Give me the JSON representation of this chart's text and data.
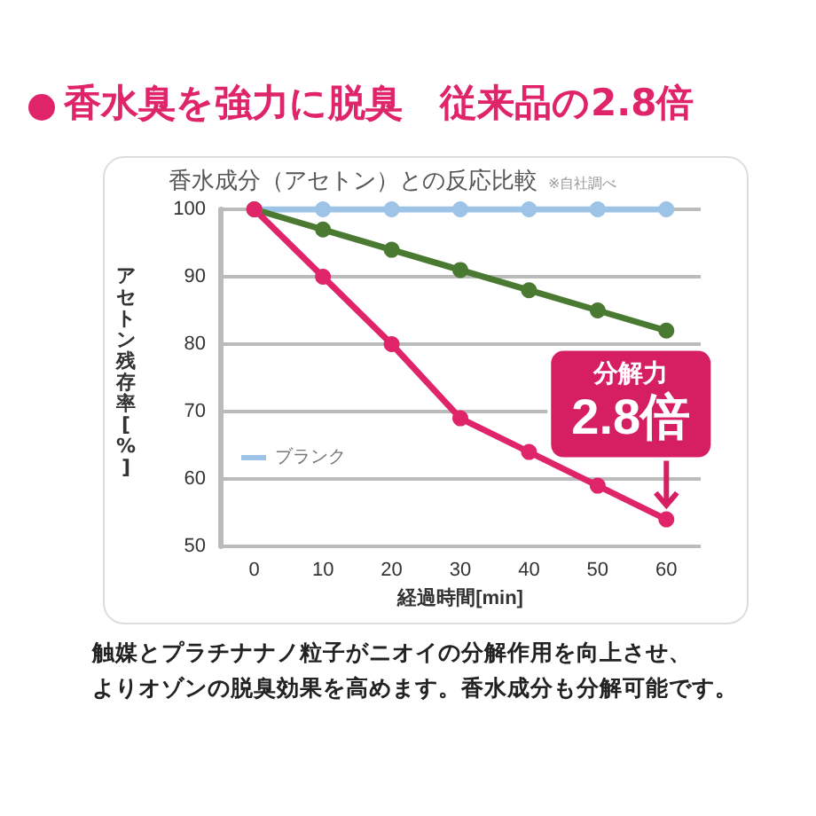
{
  "chart_data": {
    "type": "line",
    "title": "香水臭を強力に脱臭　従来品の2.8倍",
    "subtitle": "香水成分（アセトン）との反応比較",
    "xlabel": "経過時間[min]",
    "ylabel": "アセトン残存率[%]",
    "annotations": [
      "※自社調べ",
      "分解力",
      "2.8倍",
      "触媒とプラチナナノ粒子がニオイの分解作用を向上させ、",
      "よりオゾンの脱臭効果を高めます。香水成分も分解可能です。"
    ],
    "categories": [
      "0",
      "10",
      "20",
      "30",
      "40",
      "50",
      "60"
    ],
    "series": [
      {
        "name": "ブランク",
        "color": "#9dc3e6",
        "values": [
          100,
          100,
          100,
          100,
          100,
          100,
          100
        ]
      },
      {
        "color": "#4a7a32",
        "values": [
          100,
          97,
          94,
          91,
          88,
          85,
          82
        ]
      },
      {
        "color": "#e0246a",
        "values": [
          100,
          90,
          80,
          69,
          64,
          59,
          54
        ]
      }
    ],
    "ylim": [
      50,
      100
    ],
    "yticks": [
      50,
      60,
      70,
      80,
      90,
      100
    ],
    "grid": "y",
    "legend": "bottom left",
    "marker": "circle",
    "line_style": "solid"
  }
}
